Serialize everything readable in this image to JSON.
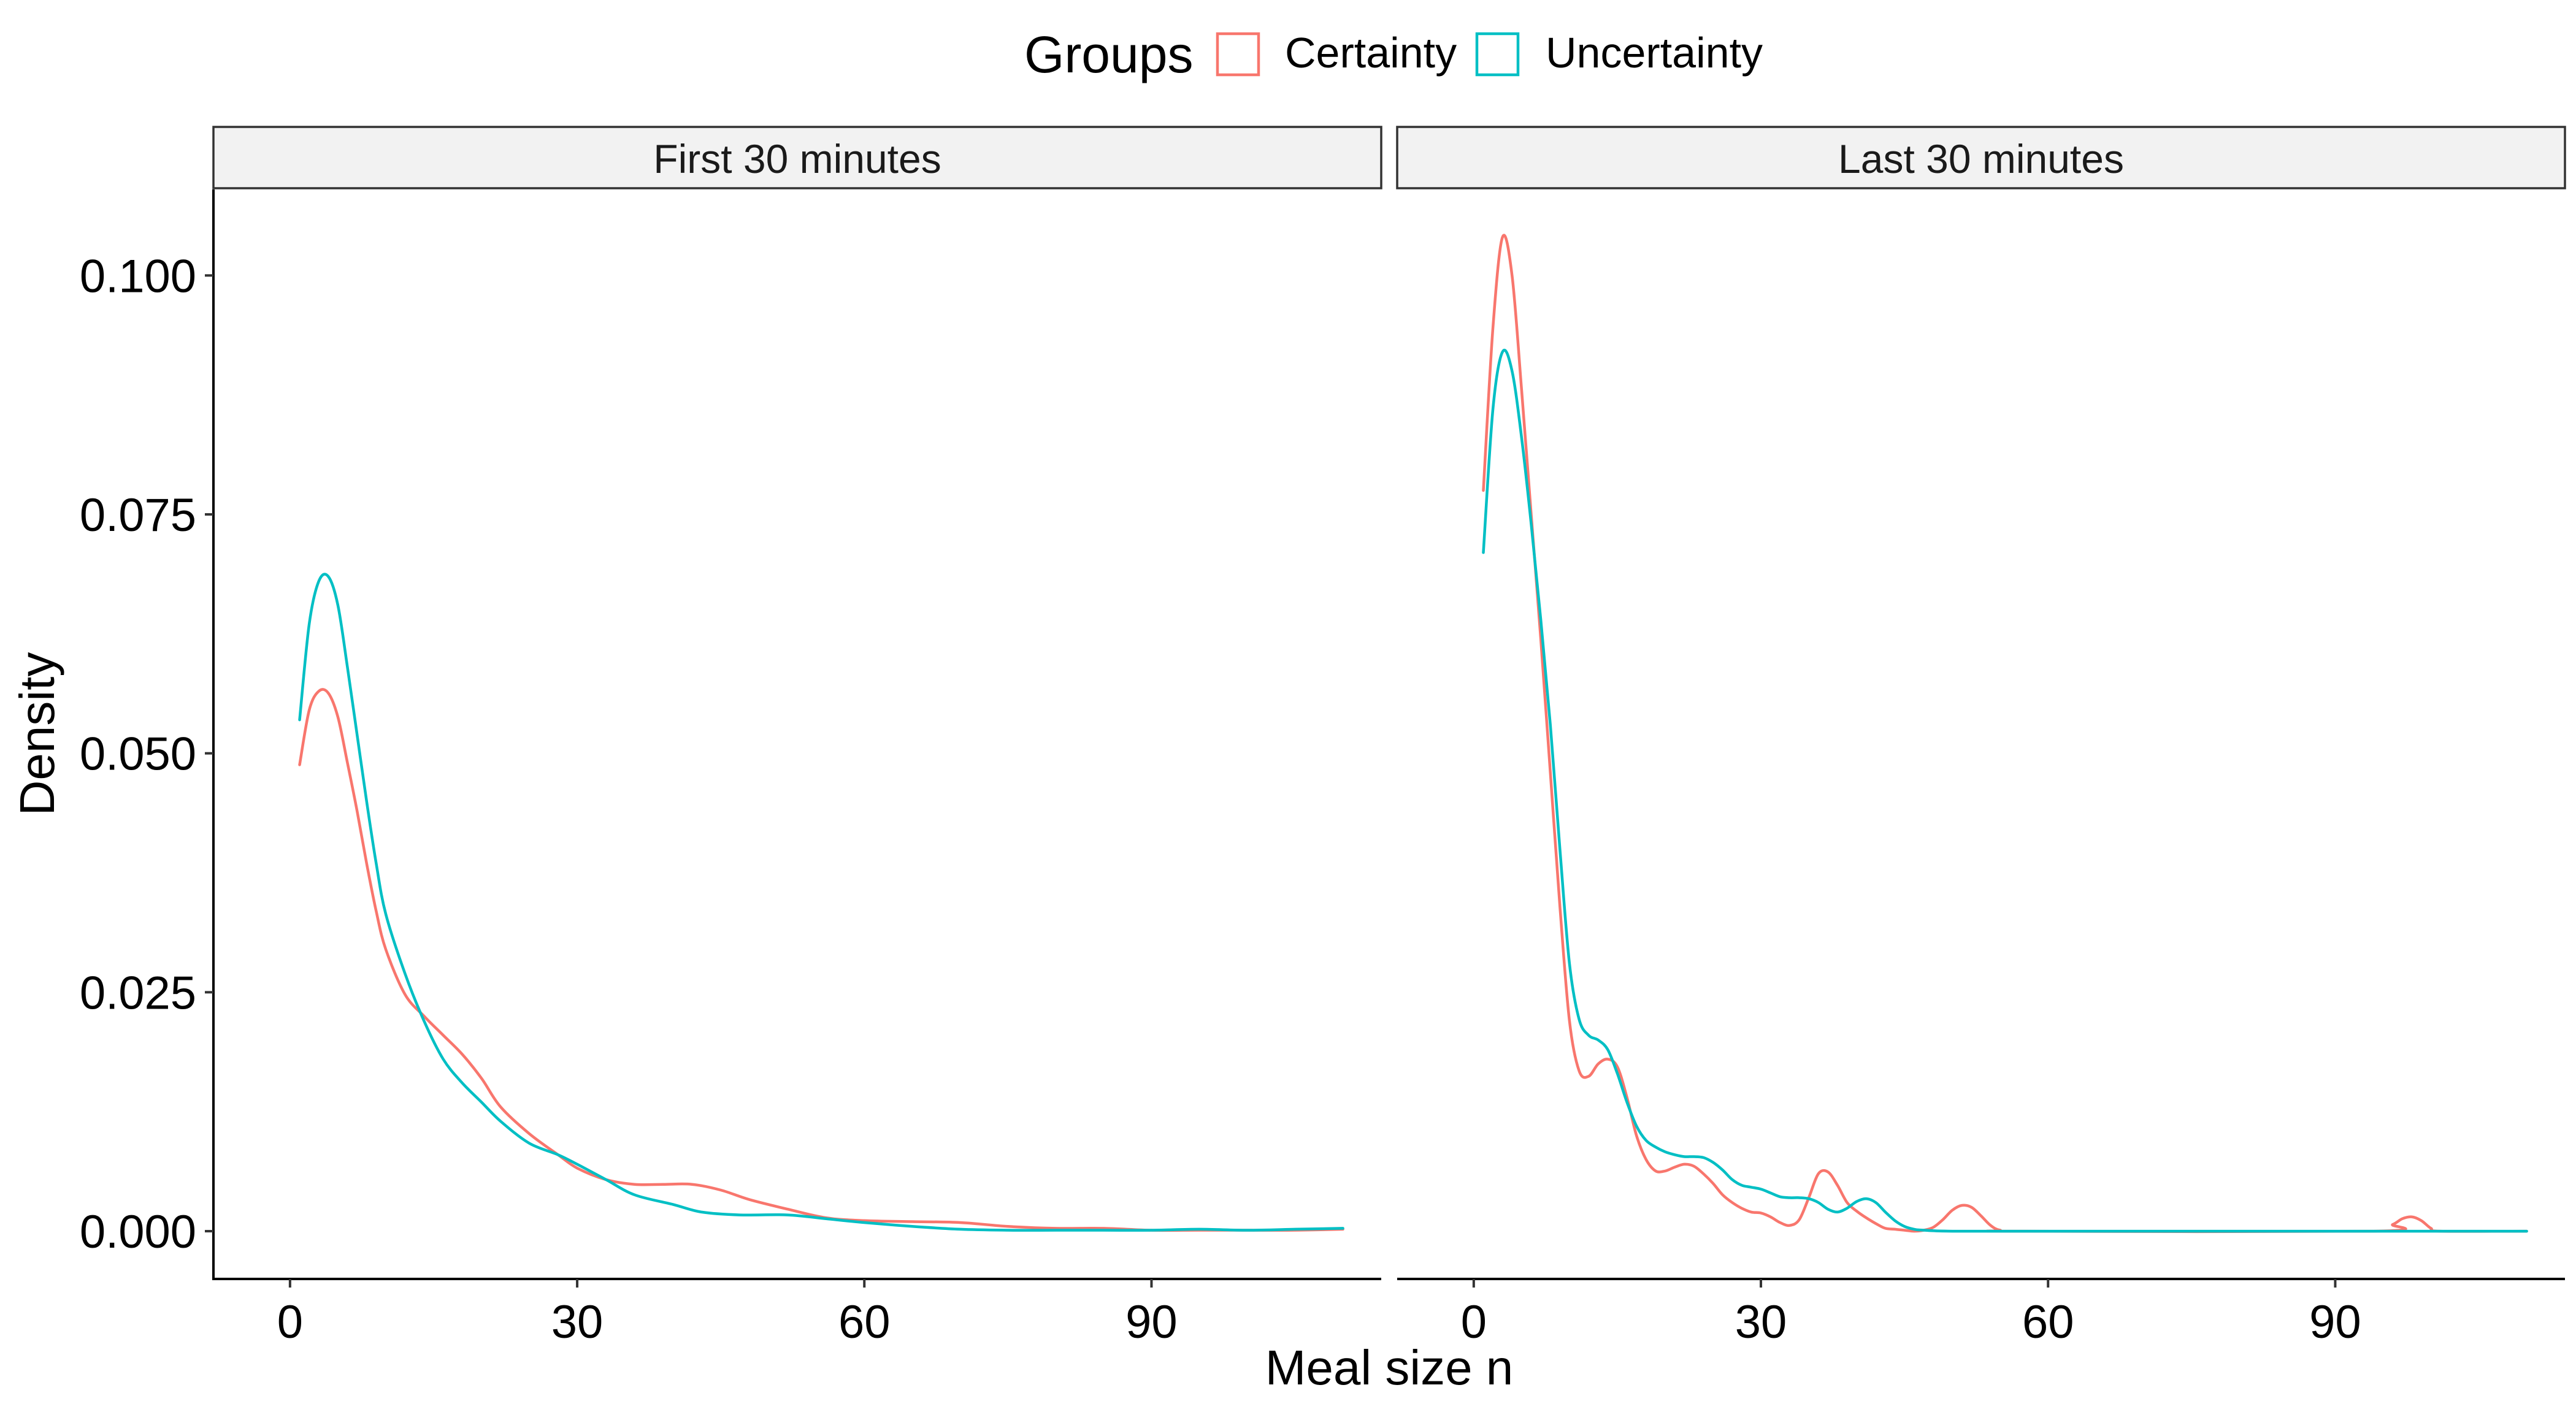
{
  "chart_data": {
    "type": "line",
    "title": "",
    "xlabel": "Meal size n",
    "ylabel": "Density",
    "xlim": [
      -8,
      114
    ],
    "ylim": [
      -0.005,
      0.109
    ],
    "x_ticks": [
      {
        "value": 0,
        "label": "0"
      },
      {
        "value": 30,
        "label": "30"
      },
      {
        "value": 60,
        "label": "60"
      },
      {
        "value": 90,
        "label": "90"
      }
    ],
    "y_ticks": [
      {
        "value": 0,
        "label": "0.000"
      },
      {
        "value": 0.025,
        "label": "0.025"
      },
      {
        "value": 0.05,
        "label": "0.050"
      },
      {
        "value": 0.075,
        "label": "0.075"
      },
      {
        "value": 0.1,
        "label": "0.100"
      }
    ],
    "legend": {
      "title": "Groups",
      "position": "top",
      "entries": [
        {
          "label": "Certainty",
          "color": "#F8766D"
        },
        {
          "label": "Uncertainty",
          "color": "#00BFC4"
        }
      ]
    },
    "grid": false,
    "panels": [
      {
        "title": "First 30 minutes",
        "series": [
          {
            "name": "Certainty",
            "color": "#F8766D",
            "points": [
              [
                1,
                0.0488
              ],
              [
                2,
                0.0545
              ],
              [
                3,
                0.0565
              ],
              [
                4,
                0.0563
              ],
              [
                5,
                0.0538
              ],
              [
                6,
                0.049
              ],
              [
                7,
                0.044
              ],
              [
                8,
                0.0385
              ],
              [
                9,
                0.0335
              ],
              [
                10,
                0.0295
              ],
              [
                12,
                0.0248
              ],
              [
                14,
                0.0225
              ],
              [
                16,
                0.0205
              ],
              [
                18,
                0.0185
              ],
              [
                20,
                0.016
              ],
              [
                22,
                0.013
              ],
              [
                25,
                0.0102
              ],
              [
                28,
                0.008
              ],
              [
                30,
                0.0066
              ],
              [
                33,
                0.0054
              ],
              [
                36,
                0.0049
              ],
              [
                39,
                0.0049
              ],
              [
                42,
                0.0049
              ],
              [
                45,
                0.0043
              ],
              [
                48,
                0.0033
              ],
              [
                52,
                0.0023
              ],
              [
                56,
                0.0014
              ],
              [
                60,
                0.0011
              ],
              [
                65,
                0.001
              ],
              [
                70,
                0.0009
              ],
              [
                75,
                0.0005
              ],
              [
                80,
                0.0003
              ],
              [
                85,
                0.0003
              ],
              [
                90,
                0.0001
              ],
              [
                95,
                0.0001
              ],
              [
                100,
                0.0001
              ],
              [
                105,
                0.0001
              ],
              [
                110,
                0.0002
              ]
            ]
          },
          {
            "name": "Uncertainty",
            "color": "#00BFC4",
            "points": [
              [
                1,
                0.0535
              ],
              [
                2,
                0.0635
              ],
              [
                3,
                0.068
              ],
              [
                4,
                0.0685
              ],
              [
                5,
                0.0655
              ],
              [
                6,
                0.059
              ],
              [
                7,
                0.052
              ],
              [
                8,
                0.045
              ],
              [
                9,
                0.0385
              ],
              [
                10,
                0.0332
              ],
              [
                12,
                0.027
              ],
              [
                14,
                0.022
              ],
              [
                16,
                0.018
              ],
              [
                18,
                0.0155
              ],
              [
                20,
                0.0135
              ],
              [
                22,
                0.0115
              ],
              [
                25,
                0.0092
              ],
              [
                28,
                0.008
              ],
              [
                30,
                0.007
              ],
              [
                33,
                0.0054
              ],
              [
                36,
                0.0038
              ],
              [
                40,
                0.0028
              ],
              [
                43,
                0.002
              ],
              [
                47,
                0.0017
              ],
              [
                52,
                0.0017
              ],
              [
                56,
                0.0013
              ],
              [
                60,
                0.0009
              ],
              [
                65,
                0.0005
              ],
              [
                70,
                0.0002
              ],
              [
                75,
                0.0001
              ],
              [
                80,
                0.0001
              ],
              [
                85,
                0.0001
              ],
              [
                90,
                0.0001
              ],
              [
                95,
                0.0002
              ],
              [
                100,
                0.0001
              ],
              [
                105,
                0.0002
              ],
              [
                110,
                0.0003
              ]
            ]
          }
        ]
      },
      {
        "title": "Last 30 minutes",
        "series": [
          {
            "name": "Certainty",
            "color": "#F8766D",
            "points": [
              [
                1,
                0.0775
              ],
              [
                2,
                0.0945
              ],
              [
                3,
                0.104
              ],
              [
                4,
                0.1
              ],
              [
                5,
                0.088
              ],
              [
                6,
                0.075
              ],
              [
                7,
                0.062
              ],
              [
                8,
                0.048
              ],
              [
                9,
                0.034
              ],
              [
                10,
                0.022
              ],
              [
                11,
                0.0168
              ],
              [
                12,
                0.0162
              ],
              [
                13,
                0.0175
              ],
              [
                14,
                0.018
              ],
              [
                15,
                0.0172
              ],
              [
                16,
                0.014
              ],
              [
                17,
                0.01
              ],
              [
                18,
                0.0075
              ],
              [
                19,
                0.0063
              ],
              [
                20,
                0.0063
              ],
              [
                21,
                0.0067
              ],
              [
                22,
                0.007
              ],
              [
                23,
                0.0068
              ],
              [
                24,
                0.006
              ],
              [
                25,
                0.005
              ],
              [
                26,
                0.0038
              ],
              [
                27,
                0.003
              ],
              [
                28,
                0.0024
              ],
              [
                29,
                0.002
              ],
              [
                30,
                0.0019
              ],
              [
                31,
                0.0015
              ],
              [
                32,
                0.0009
              ],
              [
                33,
                0.0006
              ],
              [
                34,
                0.0012
              ],
              [
                35,
                0.0035
              ],
              [
                36,
                0.006
              ],
              [
                37,
                0.0062
              ],
              [
                38,
                0.0048
              ],
              [
                39,
                0.003
              ],
              [
                40,
                0.0021
              ],
              [
                41,
                0.0014
              ],
              [
                42,
                0.0008
              ],
              [
                43,
                0.0003
              ],
              [
                44,
                0.0002
              ],
              [
                45,
                0.0001
              ],
              [
                46,
                0.0
              ],
              [
                47,
                0.0001
              ],
              [
                48,
                0.0004
              ],
              [
                49,
                0.0012
              ],
              [
                50,
                0.0022
              ],
              [
                51,
                0.0027
              ],
              [
                52,
                0.0025
              ],
              [
                53,
                0.0016
              ],
              [
                54,
                0.0006
              ],
              [
                55,
                0.0001
              ],
              [
                57,
                0.0
              ],
              [
                94,
                0.0
              ],
              [
                96,
                0.0007
              ],
              [
                97,
                0.0013
              ],
              [
                98,
                0.0015
              ],
              [
                99,
                0.0011
              ],
              [
                100,
                0.0003
              ],
              [
                101,
                0.0
              ],
              [
                110,
                0.0
              ]
            ]
          },
          {
            "name": "Uncertainty",
            "color": "#00BFC4",
            "points": [
              [
                1,
                0.071
              ],
              [
                2,
                0.086
              ],
              [
                3,
                0.092
              ],
              [
                4,
                0.09
              ],
              [
                5,
                0.083
              ],
              [
                6,
                0.074
              ],
              [
                7,
                0.064
              ],
              [
                8,
                0.053
              ],
              [
                9,
                0.04
              ],
              [
                10,
                0.028
              ],
              [
                11,
                0.0222
              ],
              [
                12,
                0.0205
              ],
              [
                13,
                0.02
              ],
              [
                14,
                0.019
              ],
              [
                15,
                0.0165
              ],
              [
                16,
                0.0135
              ],
              [
                17,
                0.011
              ],
              [
                18,
                0.0095
              ],
              [
                19,
                0.0088
              ],
              [
                20,
                0.0083
              ],
              [
                21,
                0.008
              ],
              [
                22,
                0.0078
              ],
              [
                23,
                0.0078
              ],
              [
                24,
                0.0077
              ],
              [
                25,
                0.0072
              ],
              [
                26,
                0.0064
              ],
              [
                27,
                0.0054
              ],
              [
                28,
                0.0048
              ],
              [
                29,
                0.0046
              ],
              [
                30,
                0.0044
              ],
              [
                31,
                0.004
              ],
              [
                32,
                0.0036
              ],
              [
                33,
                0.0035
              ],
              [
                34,
                0.0035
              ],
              [
                35,
                0.0034
              ],
              [
                36,
                0.003
              ],
              [
                37,
                0.0023
              ],
              [
                38,
                0.002
              ],
              [
                39,
                0.0024
              ],
              [
                40,
                0.0031
              ],
              [
                41,
                0.0034
              ],
              [
                42,
                0.003
              ],
              [
                43,
                0.002
              ],
              [
                44,
                0.0011
              ],
              [
                45,
                0.0005
              ],
              [
                46,
                0.0002
              ],
              [
                47,
                0.0001
              ],
              [
                50,
                0.0
              ],
              [
                60,
                0.0
              ],
              [
                70,
                0.0
              ],
              [
                80,
                0.0
              ],
              [
                90,
                0.0
              ],
              [
                100,
                0.0
              ],
              [
                110,
                0.0
              ]
            ]
          }
        ]
      }
    ]
  }
}
